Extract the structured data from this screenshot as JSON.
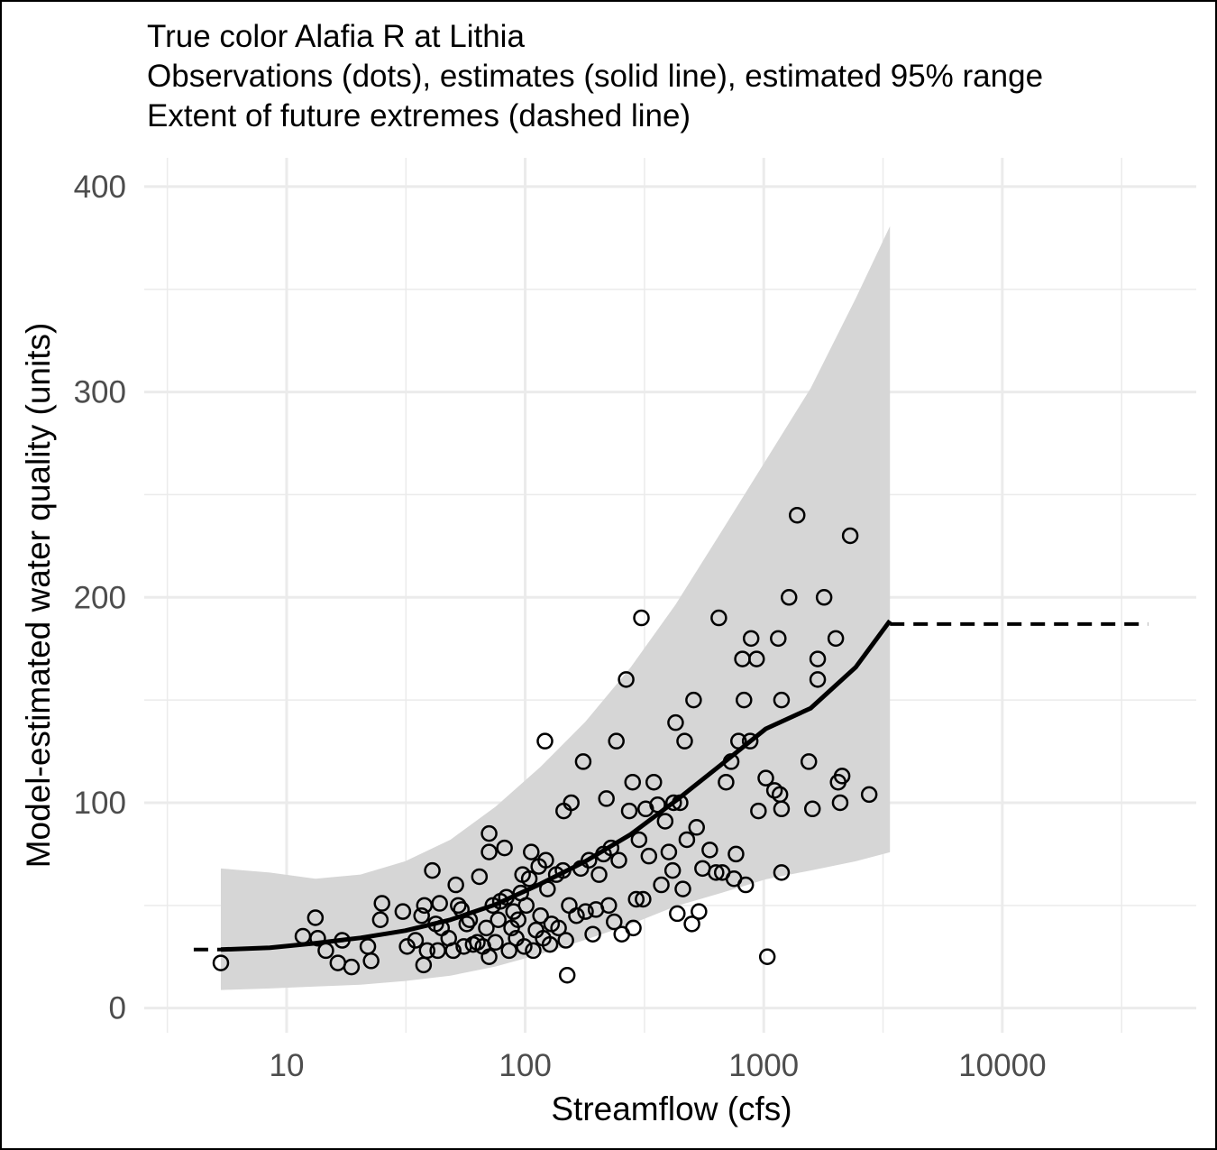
{
  "chart_data": {
    "type": "scatter",
    "title": "True color Alafia R at Lithia",
    "subtitle": [
      "Observations (dots), estimates (solid line), estimated 95% range",
      "Extent of future extremes (dashed line)"
    ],
    "x_label": "Streamflow (cfs)",
    "y_label": "Model-estimated water quality (units)",
    "xlog": true,
    "grid": true,
    "xlim": [
      2.53,
      65000
    ],
    "ylim": [
      -12,
      414
    ],
    "xticks": [
      10,
      100,
      1000,
      10000
    ],
    "yticks": [
      0,
      100,
      200,
      300,
      400
    ],
    "observations": {
      "color": "#000000",
      "x": [
        5.3,
        11.7,
        13.2,
        13.5,
        14.6,
        16.4,
        17.1,
        18.7,
        21.9,
        22.6,
        24.7,
        25.1,
        30.7,
        32,
        34.7,
        36.8,
        37.5,
        37.8,
        38.8,
        40.8,
        42.2,
        43,
        43.8,
        44.6,
        47.8,
        49.9,
        51.2,
        52.4,
        54,
        55.3,
        56.9,
        58.5,
        60.5,
        63,
        64.3,
        66.5,
        68.7,
        70.6,
        70.6,
        70.6,
        73.2,
        75,
        77.1,
        78.7,
        81.9,
        83.4,
        85.6,
        87.7,
        89.4,
        91.7,
        93.4,
        95.8,
        97.5,
        99,
        101,
        104,
        106,
        108,
        111,
        114,
        116,
        119,
        121,
        122,
        124,
        127,
        129,
        135,
        138,
        144,
        145,
        148,
        150,
        153,
        156,
        164,
        171,
        175,
        179,
        185,
        192,
        198,
        204,
        213,
        219,
        224,
        229,
        236,
        241,
        247,
        254,
        265,
        273,
        282,
        284,
        292,
        300,
        307,
        312,
        320,
        330,
        346,
        359,
        372,
        386,
        400,
        415,
        419,
        427,
        434,
        446,
        458,
        466,
        476,
        500,
        508,
        523,
        535,
        554,
        594,
        631,
        648,
        670,
        695,
        730,
        750,
        765,
        784,
        814,
        826,
        840,
        877,
        885,
        933,
        950,
        1035,
        1020,
        1109,
        1150,
        1169,
        1187,
        1187,
        1187,
        1276,
        1380,
        1545,
        1600,
        1683,
        1683,
        1790,
        2004,
        2050,
        2090,
        2130,
        2303,
        2766
      ],
      "y": [
        22,
        35,
        44,
        34,
        28,
        22,
        33,
        20,
        30,
        23,
        43,
        51,
        47,
        30,
        33,
        45,
        21,
        50,
        28,
        67,
        41,
        28,
        51,
        39,
        34,
        28,
        60,
        50,
        48,
        30,
        41,
        43,
        31,
        32,
        64,
        30,
        39,
        25,
        85,
        76,
        50,
        32,
        43,
        52,
        78,
        54,
        28,
        39,
        47,
        34,
        43,
        56,
        65,
        30,
        50,
        63,
        76,
        28,
        38,
        69,
        45,
        34,
        130,
        72,
        58,
        31,
        41,
        65,
        39,
        67,
        96,
        33,
        16,
        50,
        100,
        45,
        68,
        120,
        47,
        72,
        36,
        48,
        65,
        75,
        102,
        50,
        78,
        42,
        130,
        72,
        36,
        160,
        96,
        110,
        39,
        53,
        82,
        190,
        53,
        97,
        74,
        110,
        99,
        60,
        91,
        76,
        67,
        100,
        139,
        46,
        100,
        58,
        130,
        82,
        41,
        150,
        88,
        47,
        68,
        77,
        66,
        190,
        66,
        110,
        120,
        63,
        75,
        130,
        170,
        150,
        60,
        130,
        180,
        170,
        96,
        25,
        112,
        106,
        180,
        104,
        97,
        150,
        66,
        200,
        240,
        120,
        97,
        160,
        170,
        200,
        180,
        110,
        100,
        113,
        230,
        104
      ]
    },
    "estimate": {
      "color": "#000000",
      "band_color": "#d6d6d6",
      "x": [
        5.3,
        8.5,
        13.2,
        20.4,
        31.4,
        48.6,
        75,
        116,
        179,
        277,
        427,
        661,
        1020,
        1572,
        2430,
        3380
      ],
      "y": [
        28.5,
        29.4,
        31.6,
        34.2,
        37.7,
        43,
        50.4,
        60.5,
        71.5,
        84.6,
        100.9,
        118.4,
        136,
        146,
        166,
        188.6
      ],
      "lower": [
        8.8,
        9.6,
        10.5,
        11.4,
        13.2,
        15.8,
        20.2,
        26.3,
        33.3,
        40.8,
        49.6,
        56,
        62.7,
        67,
        71.5,
        75.9
      ],
      "upper": [
        68,
        66,
        63,
        65,
        71.5,
        82,
        98,
        117.5,
        139.5,
        166,
        196.5,
        231.6,
        266.7,
        301.8,
        345.6,
        380.7
      ]
    },
    "extremes": [
      {
        "x": [
          4.08,
          5.3
        ],
        "y": [
          28.5,
          28.5
        ]
      },
      {
        "x": [
          3380,
          40800
        ],
        "y": [
          187,
          187
        ]
      }
    ]
  }
}
